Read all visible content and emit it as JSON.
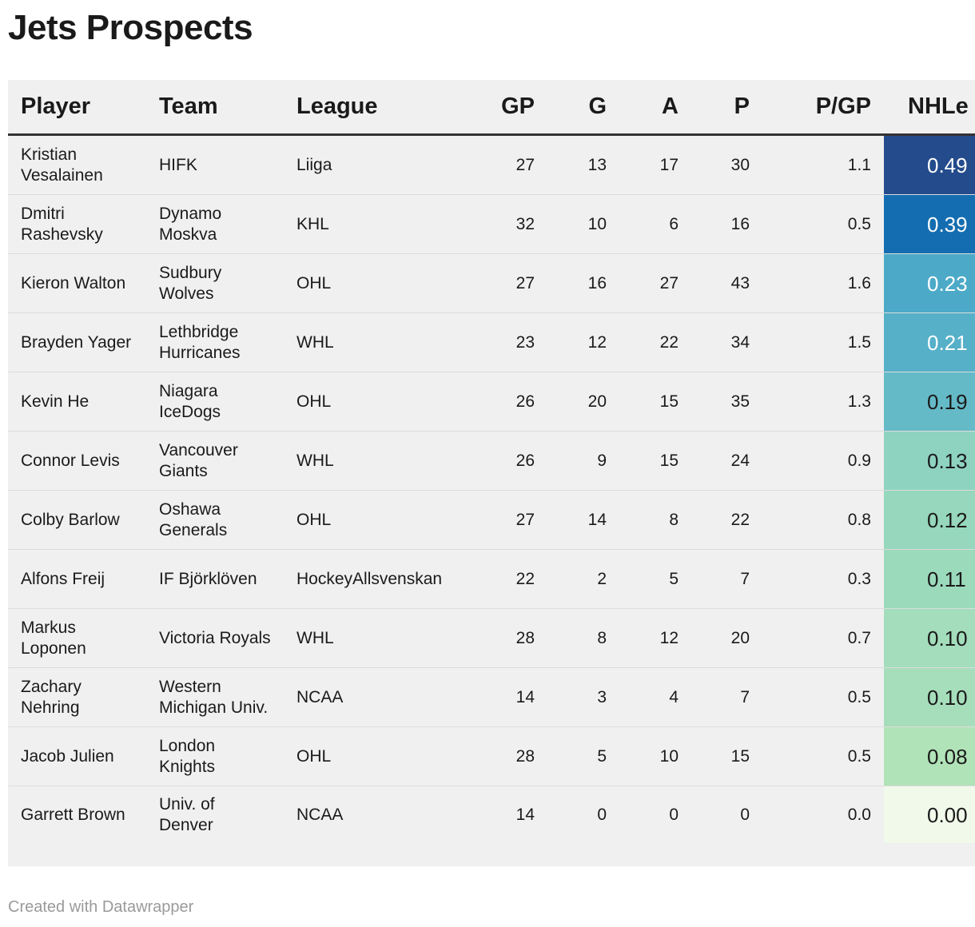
{
  "title": "Jets Prospects",
  "footer": "Created with Datawrapper",
  "table": {
    "headers": {
      "player": "Player",
      "team": "Team",
      "league": "League",
      "gp": "GP",
      "g": "G",
      "a": "A",
      "p": "P",
      "pgp": "P/GP",
      "nhle": "NHLe"
    },
    "rows": [
      {
        "player": "Kristian Vesalainen",
        "team": "HIFK",
        "league": "Liiga",
        "gp": "27",
        "g": "13",
        "a": "17",
        "p": "30",
        "pgp": "1.1",
        "nhle": "0.49",
        "nhle_color": "#244b8c",
        "nhle_text": "#ffffff"
      },
      {
        "player": "Dmitri Rashevsky",
        "team": "Dynamo Moskva",
        "league": "KHL",
        "gp": "32",
        "g": "10",
        "a": "6",
        "p": "16",
        "pgp": "0.5",
        "nhle": "0.39",
        "nhle_color": "#146db0",
        "nhle_text": "#ffffff"
      },
      {
        "player": "Kieron Walton",
        "team": "Sudbury Wolves",
        "league": "OHL",
        "gp": "27",
        "g": "16",
        "a": "27",
        "p": "43",
        "pgp": "1.6",
        "nhle": "0.23",
        "nhle_color": "#4caac8",
        "nhle_text": "#ffffff"
      },
      {
        "player": "Brayden Yager",
        "team": "Lethbridge Hurricanes",
        "league": "WHL",
        "gp": "23",
        "g": "12",
        "a": "22",
        "p": "34",
        "pgp": "1.5",
        "nhle": "0.21",
        "nhle_color": "#55b0c8",
        "nhle_text": "#ffffff"
      },
      {
        "player": "Kevin He",
        "team": "Niagara IceDogs",
        "league": "OHL",
        "gp": "26",
        "g": "20",
        "a": "15",
        "p": "35",
        "pgp": "1.3",
        "nhle": "0.19",
        "nhle_color": "#65bac8",
        "nhle_text": "#1a1a1a"
      },
      {
        "player": "Connor Levis",
        "team": "Vancouver Giants",
        "league": "WHL",
        "gp": "26",
        "g": "9",
        "a": "15",
        "p": "24",
        "pgp": "0.9",
        "nhle": "0.13",
        "nhle_color": "#8ed3c0",
        "nhle_text": "#1a1a1a"
      },
      {
        "player": "Colby Barlow",
        "team": "Oshawa Generals",
        "league": "OHL",
        "gp": "27",
        "g": "14",
        "a": "8",
        "p": "22",
        "pgp": "0.8",
        "nhle": "0.12",
        "nhle_color": "#96d7bd",
        "nhle_text": "#1a1a1a"
      },
      {
        "player": "Alfons Freij",
        "team": "IF Björklöven",
        "league": "HockeyAllsvenskan",
        "gp": "22",
        "g": "2",
        "a": "5",
        "p": "7",
        "pgp": "0.3",
        "nhle": "0.11",
        "nhle_color": "#9cdabc",
        "nhle_text": "#1a1a1a"
      },
      {
        "player": "Markus Loponen",
        "team": "Victoria Royals",
        "league": "WHL",
        "gp": "28",
        "g": "8",
        "a": "12",
        "p": "20",
        "pgp": "0.7",
        "nhle": "0.10",
        "nhle_color": "#a3ddbb",
        "nhle_text": "#1a1a1a"
      },
      {
        "player": "Zachary Nehring",
        "team": "Western Michigan Univ.",
        "league": "NCAA",
        "gp": "14",
        "g": "3",
        "a": "4",
        "p": "7",
        "pgp": "0.5",
        "nhle": "0.10",
        "nhle_color": "#a6debb",
        "nhle_text": "#1a1a1a"
      },
      {
        "player": "Jacob Julien",
        "team": "London Knights",
        "league": "OHL",
        "gp": "28",
        "g": "5",
        "a": "10",
        "p": "15",
        "pgp": "0.5",
        "nhle": "0.08",
        "nhle_color": "#b1e3b8",
        "nhle_text": "#1a1a1a"
      },
      {
        "player": "Garrett Brown",
        "team": "Univ. of Denver",
        "league": "NCAA",
        "gp": "14",
        "g": "0",
        "a": "0",
        "p": "0",
        "pgp": "0.0",
        "nhle": "0.00",
        "nhle_color": "#f1f9ea",
        "nhle_text": "#1a1a1a"
      }
    ]
  }
}
